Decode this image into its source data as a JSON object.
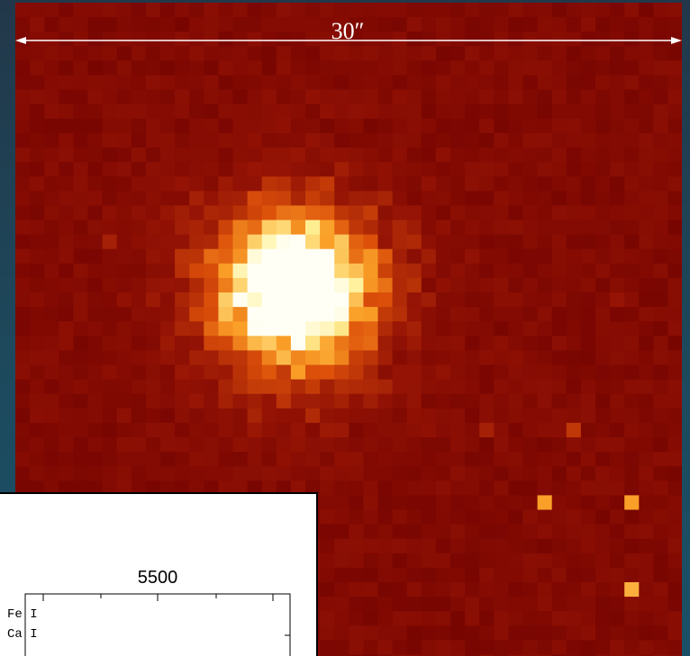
{
  "image": {
    "scale_label": "30″"
  },
  "inset": {
    "axis_tick_label": "5500",
    "lines": [
      "Fe I",
      "Ca I"
    ]
  }
}
